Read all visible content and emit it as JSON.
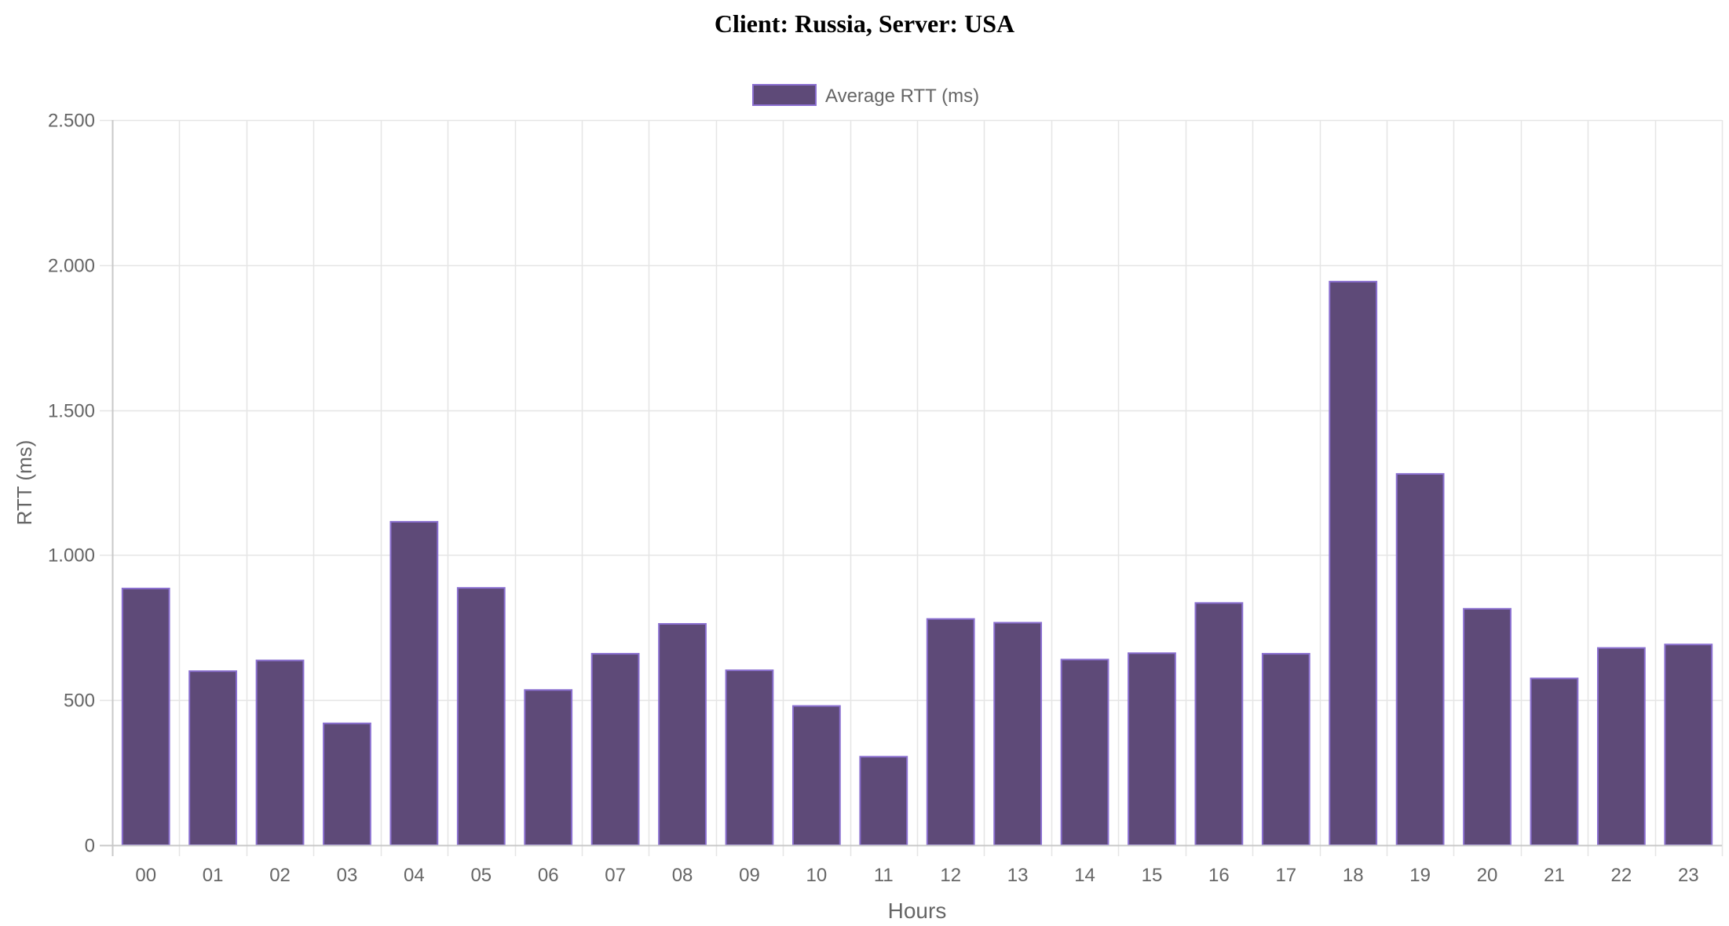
{
  "chart_data": {
    "type": "bar",
    "title": "Client: Russia, Server: USA",
    "xlabel": "Hours",
    "ylabel": "RTT (ms)",
    "categories": [
      "00",
      "01",
      "02",
      "03",
      "04",
      "05",
      "06",
      "07",
      "08",
      "09",
      "10",
      "11",
      "12",
      "13",
      "14",
      "15",
      "16",
      "17",
      "18",
      "19",
      "20",
      "21",
      "22",
      "23"
    ],
    "series": [
      {
        "name": "Average RTT (ms)",
        "values": [
          885,
          600,
          637,
          420,
          1115,
          887,
          535,
          660,
          763,
          603,
          480,
          305,
          780,
          767,
          640,
          662,
          835,
          660,
          1943,
          1280,
          815,
          575,
          680,
          692
        ]
      }
    ],
    "ylim": [
      0,
      2500
    ],
    "yticks": [
      0,
      500,
      1000,
      1500,
      2000,
      2500
    ],
    "ytick_labels": [
      "0",
      "500",
      "1.000",
      "1.500",
      "2.000",
      "2.500"
    ],
    "grid": true,
    "legend": "top-center",
    "colors": {
      "bar_fill": "#5e4a78",
      "bar_stroke": "#8a6fd0",
      "grid": "#e5e5e5",
      "axis": "#c8c8c8",
      "tick_text": "#666666"
    }
  }
}
